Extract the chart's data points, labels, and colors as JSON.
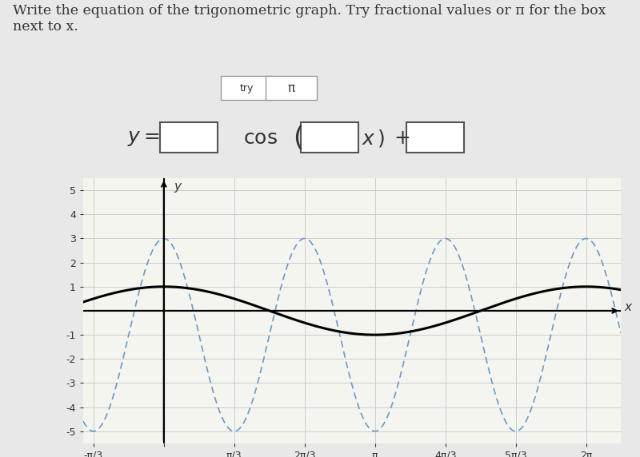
{
  "title_text": "Write the equation of the trigonometric graph. Try fractional values or π for the box\nnext to x.",
  "equation_text": "y = \\square \\cos(\\square\\, x) +\\square",
  "try_label": "try",
  "pi_label": "π",
  "solid_color": "#000000",
  "dashed_color": "#6699cc",
  "bg_color": "#e8e8e8",
  "plot_bg_color": "#f5f5f0",
  "xlim": [
    -1.2,
    6.8
  ],
  "ylim": [
    -5.5,
    5.5
  ],
  "xticks": [
    -1.0471975511965976,
    0,
    1.0471975511965976,
    2.0943951023931953,
    3.141592653589793,
    4.1887902047863905,
    5.235987755982988,
    6.283185307179586
  ],
  "xtick_labels": [
    "-π/3",
    "",
    "π/3",
    "2π/3",
    "π",
    "4π/3",
    "5π/3",
    "2π"
  ],
  "yticks": [
    -5,
    -4,
    -3,
    -2,
    -1,
    1,
    2,
    3,
    4,
    5
  ],
  "solid_amplitude": 1,
  "solid_B": 1,
  "solid_vertical_shift": 0,
  "dashed_amplitude": 4,
  "dashed_B": 3,
  "dashed_vertical_shift": -1,
  "grid_color": "#cccccc",
  "font_color": "#333333"
}
